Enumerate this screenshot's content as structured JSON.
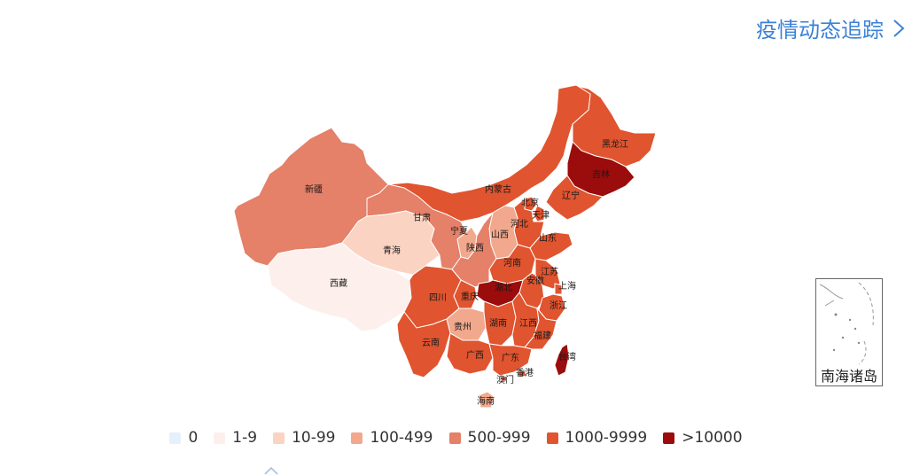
{
  "header": {
    "link_label": "疫情动态追踪",
    "chevron_icon": "chevron-right-icon"
  },
  "colors": {
    "link": "#3b82d6",
    "scale": [
      "#e6f0fa",
      "#fdf0ec",
      "#fbd3c2",
      "#f1a88c",
      "#e58069",
      "#e0542f",
      "#9b0c0c"
    ]
  },
  "legend": [
    {
      "label": "0",
      "color": "#e6f0fa"
    },
    {
      "label": "1-9",
      "color": "#fdf0ec"
    },
    {
      "label": "10-99",
      "color": "#fbd3c2"
    },
    {
      "label": "100-499",
      "color": "#f1a88c"
    },
    {
      "label": "500-999",
      "color": "#e58069"
    },
    {
      "label": "1000-9999",
      "color": "#e0542f"
    },
    {
      "label": ">10000",
      "color": "#9b0c0c"
    }
  ],
  "inset": {
    "label": "南海诸岛"
  },
  "provinces": [
    {
      "name": "黑龙江",
      "level": 5
    },
    {
      "name": "吉林",
      "level": 6
    },
    {
      "name": "辽宁",
      "level": 5
    },
    {
      "name": "内蒙古",
      "level": 5
    },
    {
      "name": "北京",
      "level": 5
    },
    {
      "name": "天津",
      "level": 5
    },
    {
      "name": "河北",
      "level": 5
    },
    {
      "name": "山西",
      "level": 3
    },
    {
      "name": "山东",
      "level": 5
    },
    {
      "name": "新疆",
      "level": 4
    },
    {
      "name": "甘肃",
      "level": 4
    },
    {
      "name": "宁夏",
      "level": 3
    },
    {
      "name": "青海",
      "level": 2
    },
    {
      "name": "陕西",
      "level": 4
    },
    {
      "name": "河南",
      "level": 5
    },
    {
      "name": "江苏",
      "level": 5
    },
    {
      "name": "安徽",
      "level": 5
    },
    {
      "name": "上海",
      "level": 5
    },
    {
      "name": "西藏",
      "level": 1
    },
    {
      "name": "四川",
      "level": 5
    },
    {
      "name": "重庆",
      "level": 5
    },
    {
      "name": "湖北",
      "level": 6
    },
    {
      "name": "浙江",
      "level": 5
    },
    {
      "name": "贵州",
      "level": 3
    },
    {
      "name": "湖南",
      "level": 5
    },
    {
      "name": "江西",
      "level": 5
    },
    {
      "name": "云南",
      "level": 5
    },
    {
      "name": "广西",
      "level": 5
    },
    {
      "name": "福建",
      "level": 5
    },
    {
      "name": "广东",
      "level": 5
    },
    {
      "name": "台湾",
      "level": 6
    },
    {
      "name": "香港",
      "level": 5
    },
    {
      "name": "澳门",
      "level": 5
    },
    {
      "name": "海南",
      "level": 3
    }
  ]
}
